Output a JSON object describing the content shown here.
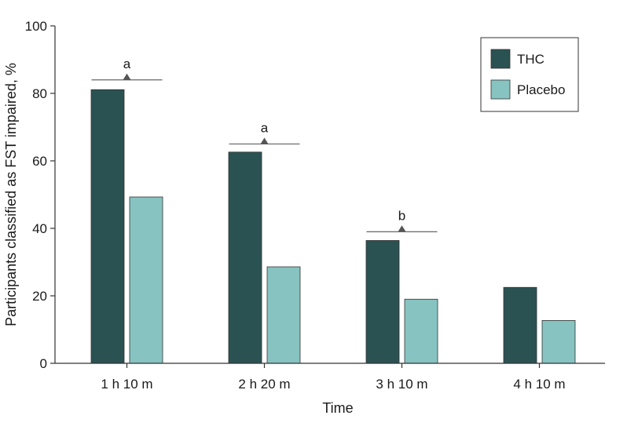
{
  "chart_data": {
    "type": "bar",
    "title": "",
    "xlabel": "Time",
    "ylabel": "Participants classified as FST impaired, %",
    "ylim": [
      0,
      100
    ],
    "yticks": [
      0,
      20,
      40,
      60,
      80,
      100
    ],
    "categories": [
      "1 h 10 m",
      "2 h 20 m",
      "3 h 10 m",
      "4 h 10 m"
    ],
    "series": [
      {
        "name": "THC",
        "color": "#2b5253",
        "values": [
          81.1,
          62.6,
          36.4,
          22.5
        ]
      },
      {
        "name": "Placebo",
        "color": "#86c3c1",
        "values": [
          49.3,
          28.6,
          19.0,
          12.7
        ]
      }
    ],
    "annotations": [
      {
        "category_index": 0,
        "label": "a",
        "y": 84
      },
      {
        "category_index": 1,
        "label": "a",
        "y": 65
      },
      {
        "category_index": 2,
        "label": "b",
        "y": 39
      }
    ],
    "legend": {
      "position": "top-right",
      "entries": [
        "THC",
        "Placebo"
      ]
    }
  }
}
